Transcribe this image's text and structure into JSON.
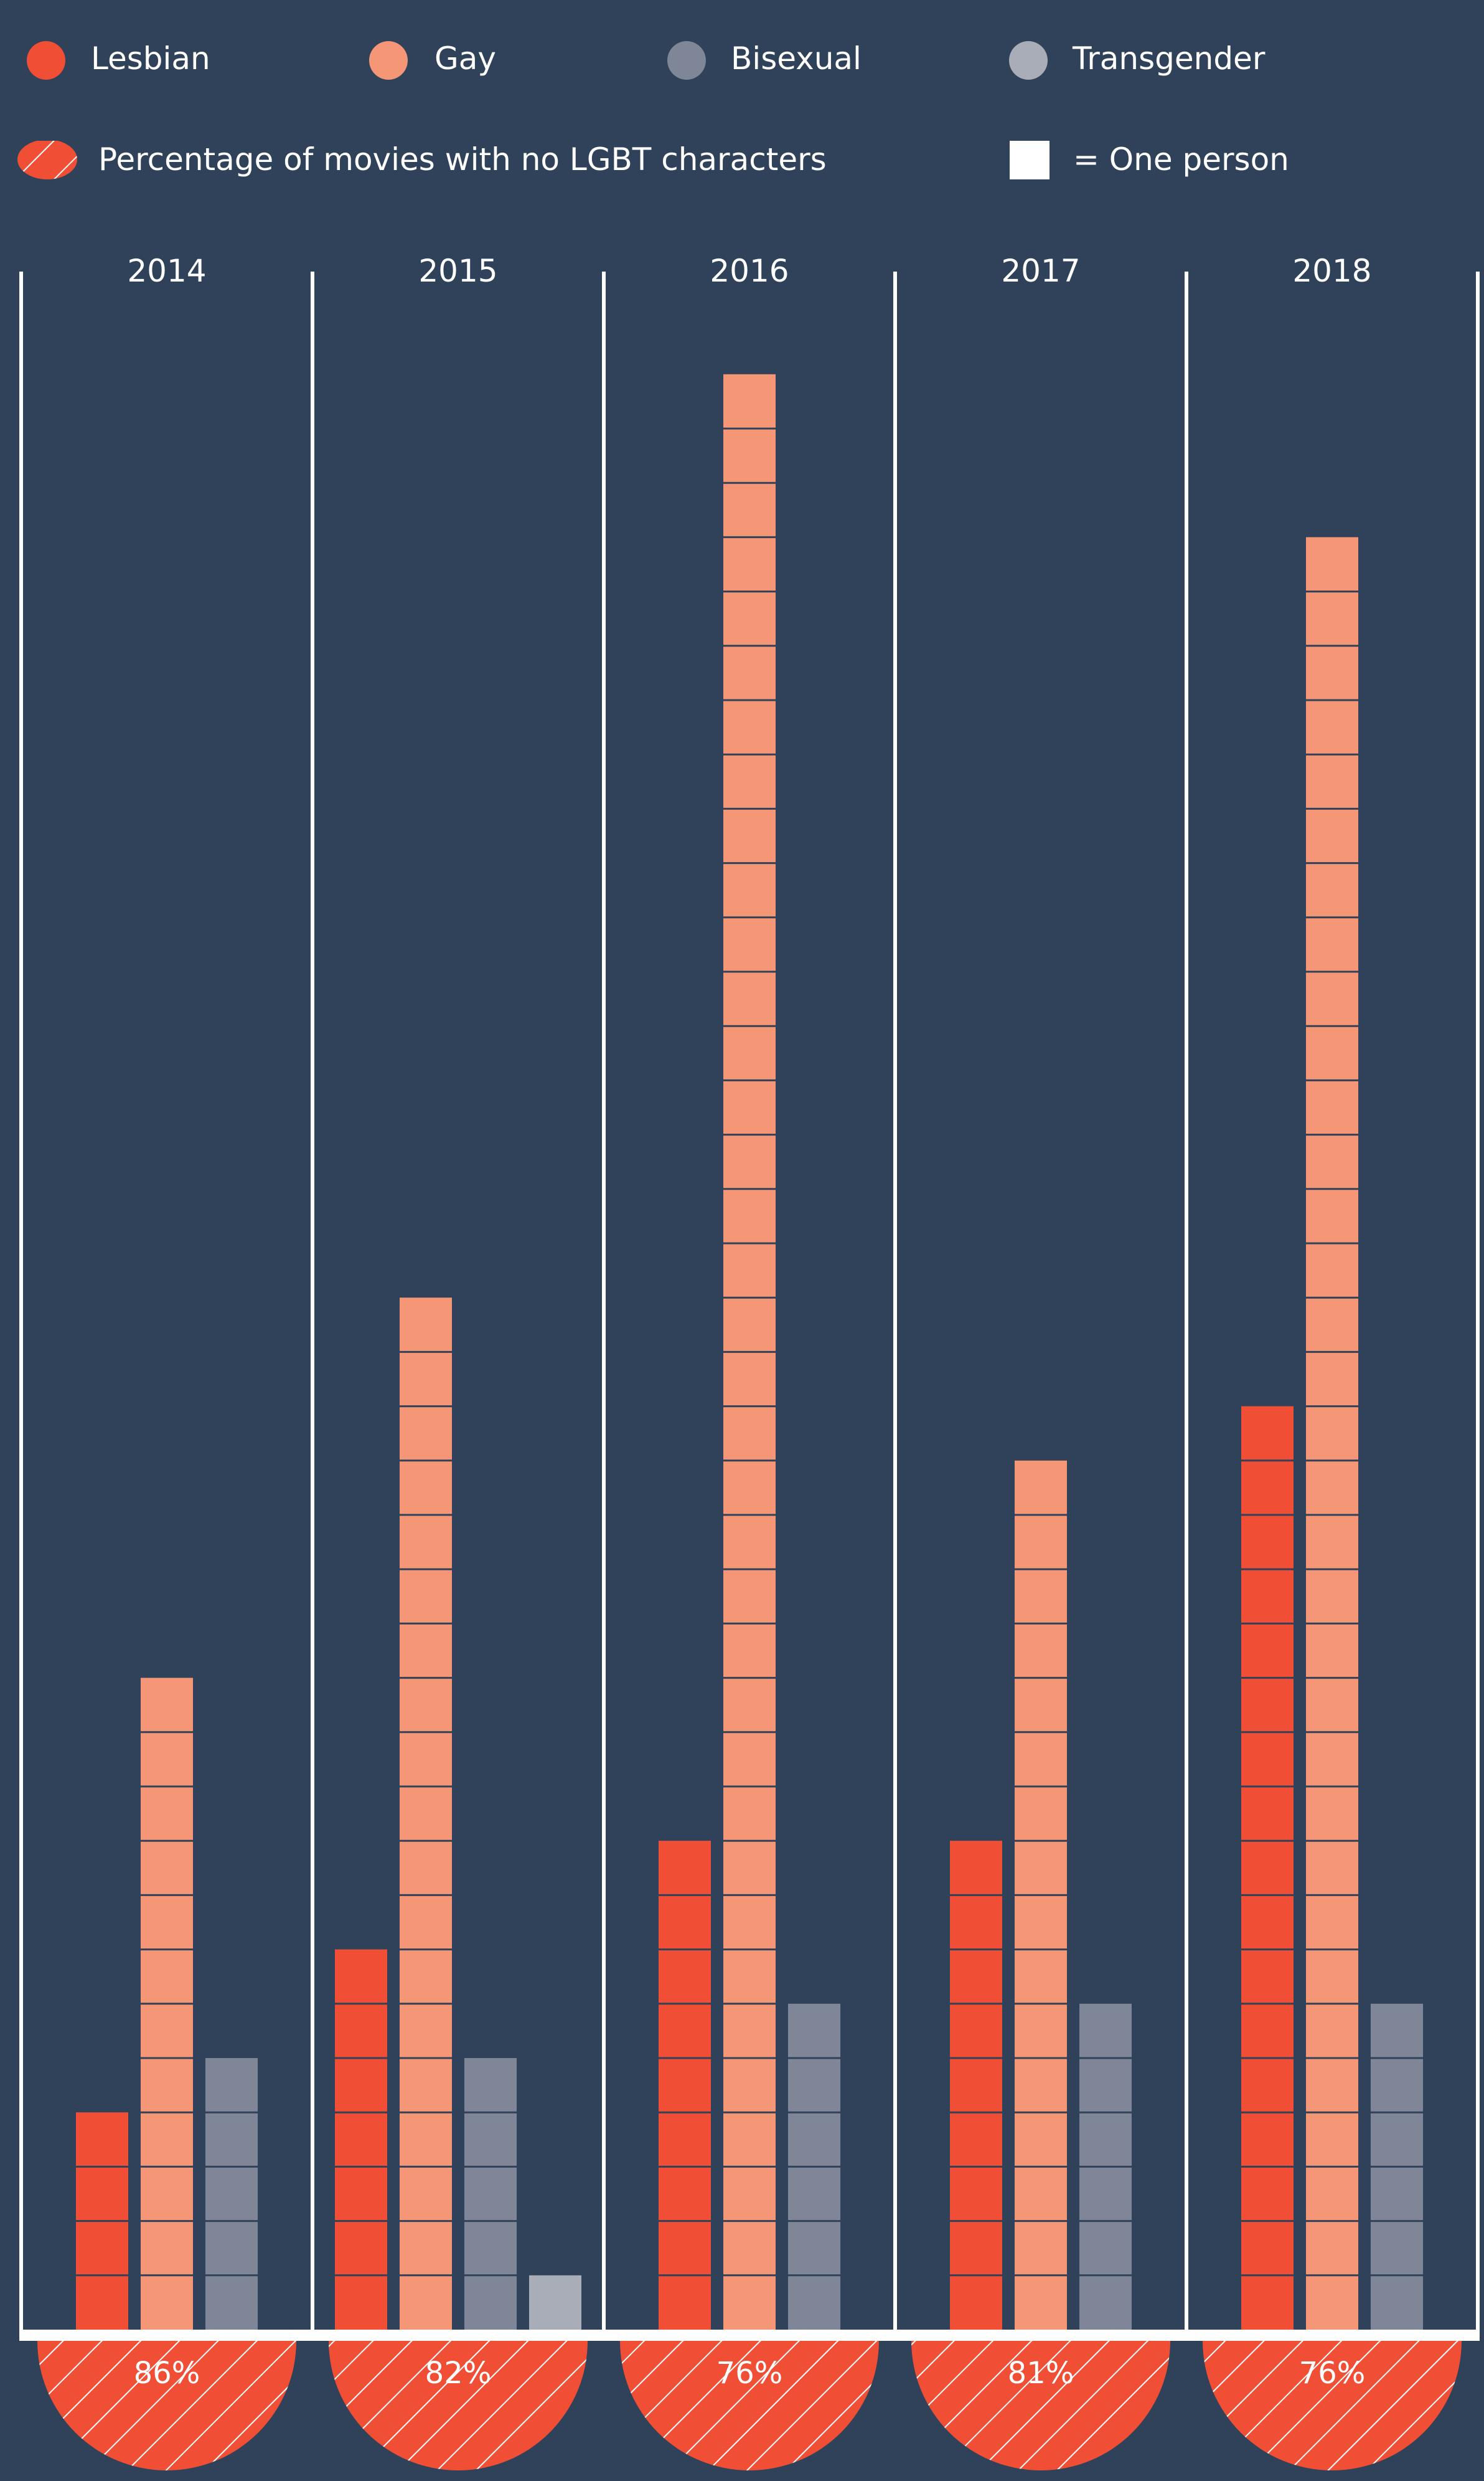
{
  "legend": {
    "categories": [
      {
        "label": "Lesbian",
        "color": "#f04e35"
      },
      {
        "label": "Gay",
        "color": "#f59676"
      },
      {
        "label": "Bisexual",
        "color": "#7f8697"
      },
      {
        "label": "Transgender",
        "color": "#a9adb8"
      }
    ],
    "no_lgbt_label": "Percentage of movies with no LGBT characters",
    "unit_label": "= One person"
  },
  "colors": {
    "background": "#2f4259",
    "lesbian": "#f04e35",
    "gay": "#f59676",
    "bisexual": "#7f8697",
    "transgender": "#a9adb8",
    "semicircle": "#f04e35",
    "line": "#ffffff"
  },
  "chart_data": {
    "type": "bar",
    "unit": "One person",
    "categories": [
      "2014",
      "2015",
      "2016",
      "2017",
      "2018"
    ],
    "series": [
      {
        "name": "Lesbian",
        "values": [
          4,
          7,
          9,
          9,
          17
        ]
      },
      {
        "name": "Gay",
        "values": [
          12,
          19,
          36,
          16,
          33
        ]
      },
      {
        "name": "Bisexual",
        "values": [
          5,
          5,
          6,
          6,
          6
        ]
      },
      {
        "name": "Transgender",
        "values": [
          0,
          1,
          0,
          0,
          0
        ]
      }
    ],
    "no_lgbt_percent": [
      "86%",
      "82%",
      "76%",
      "81%",
      "76%"
    ],
    "title": "",
    "xlabel": "",
    "ylabel": "",
    "grid": false,
    "legend_position": "top"
  }
}
